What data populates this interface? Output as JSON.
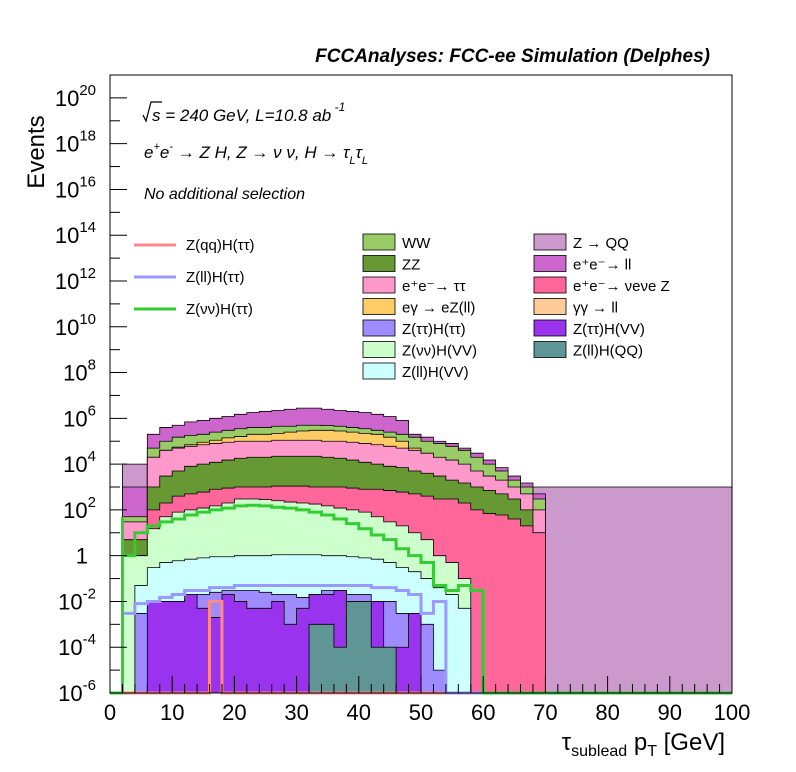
{
  "header": "FCCAnalyses: FCC-ee Simulation (Delphes)",
  "annotations": {
    "energy": "√s = 240 GeV, L=10.8 ab⁻¹",
    "process": "e⁺e⁻ → Z H, Z → νν, H → τ_L τ_L",
    "selection": "No additional selection"
  },
  "chart_data": {
    "type": "histogram",
    "stacked": true,
    "title": "FCCAnalyses: FCC-ee Simulation (Delphes)",
    "xlabel": "τsublead pT [GeV]",
    "ylabel": "Events",
    "xlim": [
      0,
      100
    ],
    "ylim": [
      1e-06,
      1e+21
    ],
    "yscale": "log",
    "grid": false,
    "legend_placement": "top",
    "x_ticks": [
      "0",
      "10",
      "20",
      "30",
      "40",
      "50",
      "60",
      "70",
      "80",
      "90",
      "100"
    ],
    "y_ticks": [
      {
        "b": "10",
        "e": "20",
        "v": 1e+20
      },
      {
        "b": "10",
        "e": "18",
        "v": 1e+18
      },
      {
        "b": "10",
        "e": "16",
        "v": 1e+16
      },
      {
        "b": "10",
        "e": "14",
        "v": 100000000000000.0
      },
      {
        "b": "10",
        "e": "12",
        "v": 1000000000000.0
      },
      {
        "b": "10",
        "e": "10",
        "v": 10000000000.0
      },
      {
        "b": "10",
        "e": "8",
        "v": 100000000.0
      },
      {
        "b": "10",
        "e": "6",
        "v": 1000000.0
      },
      {
        "b": "10",
        "e": "4",
        "v": 10000.0
      },
      {
        "b": "10",
        "e": "2",
        "v": 100.0
      },
      {
        "b": "1",
        "e": "",
        "v": 1
      },
      {
        "b": "10",
        "e": "-2",
        "v": 0.01
      },
      {
        "b": "10",
        "e": "-4",
        "v": 0.0001
      },
      {
        "b": "10",
        "e": "-6",
        "v": 1e-06
      }
    ],
    "stack_boundaries": [
      {
        "name": "Z(ll)H(QQ) top",
        "color": "#5f9595",
        "x": [
          0,
          30,
          32,
          36,
          38,
          40,
          42,
          44,
          46,
          48,
          100
        ],
        "y": [
          1e-06,
          1e-06,
          0.001,
          0.0001,
          0.01,
          0.01,
          0.0001,
          0.0001,
          1e-06,
          1e-06,
          1e-06
        ]
      },
      {
        "name": "Z(ττ)H(VV) top",
        "color": "#9933ee",
        "x": [
          0,
          4,
          6,
          8,
          10,
          12,
          14,
          16,
          18,
          20,
          22,
          24,
          26,
          28,
          30,
          32,
          34,
          36,
          38,
          40,
          42,
          44,
          46,
          48,
          50,
          100
        ],
        "y": [
          1e-06,
          1e-06,
          0.01,
          0.01,
          0.01,
          0.02,
          0.005,
          0.002,
          0.02,
          0.01,
          0.005,
          0.005,
          0.01,
          0.001,
          0.005,
          0.02,
          0.02,
          0.03,
          0.003,
          0.01,
          0.01,
          0.0001,
          0.0001,
          0.003,
          1e-06,
          1e-06
        ]
      },
      {
        "name": "Z(ττ)H(ττ) top",
        "color": "#9d8bff",
        "x": [
          0,
          2,
          4,
          6,
          8,
          10,
          12,
          14,
          16,
          18,
          20,
          22,
          24,
          26,
          28,
          30,
          32,
          34,
          36,
          38,
          40,
          42,
          44,
          46,
          48,
          50,
          52,
          54,
          100
        ],
        "y": [
          1e-06,
          1e-06,
          0.003,
          0.005,
          0.008,
          0.01,
          0.012,
          0.02,
          0.025,
          0.03,
          0.03,
          0.03,
          0.025,
          0.02,
          0.02,
          0.015,
          0.02,
          0.03,
          0.03,
          0.02,
          0.02,
          0.01,
          0.01,
          0.003,
          0.002,
          0.001,
          1e-05,
          1e-06,
          1e-06
        ]
      },
      {
        "name": "Z(ll)H(VV) top",
        "color": "#ccffff",
        "x": [
          0,
          2,
          4,
          6,
          8,
          10,
          12,
          14,
          16,
          18,
          20,
          22,
          24,
          26,
          28,
          30,
          32,
          34,
          36,
          38,
          40,
          42,
          44,
          46,
          48,
          50,
          52,
          54,
          56,
          58,
          100
        ],
        "y": [
          1e-06,
          1e-06,
          0.05,
          0.3,
          0.5,
          0.6,
          0.7,
          0.8,
          0.9,
          0.9,
          1.0,
          1.0,
          1.0,
          1.1,
          1.1,
          1.1,
          1.1,
          1.0,
          1.0,
          0.9,
          0.8,
          0.7,
          0.5,
          0.3,
          0.2,
          0.1,
          0.04,
          0.02,
          0.005,
          1e-06,
          1e-06
        ]
      },
      {
        "name": "Z(νν)H(VV) top",
        "color": "#ccffcc",
        "x": [
          0,
          2,
          4,
          6,
          8,
          10,
          12,
          14,
          16,
          18,
          20,
          22,
          24,
          26,
          28,
          30,
          32,
          34,
          36,
          38,
          40,
          42,
          44,
          46,
          48,
          50,
          52,
          54,
          56,
          58,
          100
        ],
        "y": [
          1e-06,
          1,
          1,
          15,
          50,
          80,
          100,
          120,
          150,
          200,
          300,
          300,
          280,
          250,
          220,
          200,
          180,
          150,
          120,
          100,
          80,
          50,
          30,
          20,
          10,
          5,
          1,
          0.5,
          0.1,
          1e-06,
          1e-06
        ]
      },
      {
        "name": "e⁺e⁻→νeνeZ top",
        "color": "#ff6699",
        "x": [
          0,
          2,
          4,
          6,
          8,
          10,
          12,
          14,
          16,
          18,
          20,
          22,
          24,
          26,
          28,
          30,
          32,
          34,
          36,
          38,
          40,
          42,
          44,
          46,
          48,
          50,
          52,
          54,
          56,
          58,
          60,
          62,
          64,
          66,
          68,
          70,
          100
        ],
        "y": [
          1e-06,
          1,
          1,
          100,
          200,
          400,
          500,
          600,
          800,
          900,
          1000,
          1000,
          1000,
          1100,
          1100,
          1100,
          1000,
          1000,
          1000,
          900,
          800,
          800,
          700,
          600,
          500,
          400,
          300,
          300,
          200,
          100,
          70,
          60,
          40,
          20,
          10,
          1e-06,
          1e-06
        ]
      },
      {
        "name": "ZZ top",
        "color": "#669933",
        "x": [
          0,
          2,
          4,
          6,
          8,
          10,
          12,
          14,
          16,
          18,
          20,
          22,
          24,
          26,
          28,
          30,
          32,
          34,
          36,
          38,
          40,
          42,
          44,
          46,
          48,
          50,
          52,
          54,
          56,
          58,
          60,
          62,
          64,
          66,
          68,
          70,
          100
        ],
        "y": [
          1e-06,
          5,
          5,
          1000,
          3000,
          5000,
          8000,
          10000,
          12000,
          15000,
          18000,
          20000,
          20000,
          22000,
          22000,
          22000,
          22000,
          20000,
          18000,
          15000,
          12000,
          10000,
          8000,
          7000,
          5000,
          4000,
          3000,
          2000,
          1500,
          1000,
          700,
          500,
          300,
          100,
          10,
          1e-06,
          1e-06
        ]
      },
      {
        "name": "e⁺e⁻→ττ top",
        "color": "#ff99cc",
        "x": [
          0,
          2,
          4,
          6,
          8,
          10,
          12,
          14,
          16,
          18,
          20,
          22,
          24,
          26,
          28,
          30,
          32,
          34,
          36,
          38,
          40,
          42,
          44,
          46,
          48,
          50,
          52,
          54,
          56,
          58,
          60,
          62,
          64,
          66,
          68,
          70,
          100
        ],
        "y": [
          1e-06,
          30,
          30,
          20000,
          40000,
          50000,
          60000,
          70000,
          80000,
          90000,
          100000,
          100000,
          100000,
          110000,
          110000,
          110000,
          110000,
          100000,
          100000,
          90000,
          80000,
          70000,
          60000,
          50000,
          40000,
          30000,
          20000,
          15000,
          10000,
          5000,
          3000,
          2000,
          1000,
          500,
          100,
          1e-06,
          1e-06
        ]
      },
      {
        "name": "eγ→eZ(ll) top",
        "color": "#ffcc66",
        "x": [
          0,
          2,
          4,
          6,
          8,
          10,
          12,
          14,
          16,
          18,
          20,
          22,
          24,
          26,
          28,
          30,
          32,
          34,
          36,
          38,
          40,
          42,
          44,
          46,
          48,
          50,
          100
        ],
        "y": [
          1e-06,
          30,
          30,
          20000,
          40000,
          55000,
          70000,
          90000,
          110000,
          140000,
          160000,
          200000,
          200000,
          220000,
          250000,
          280000,
          300000,
          300000,
          280000,
          250000,
          220000,
          200000,
          150000,
          100000,
          50000,
          1e-06,
          1e-06
        ]
      },
      {
        "name": "ZZ/WW upper top",
        "color": "#99cc66",
        "x": [
          0,
          2,
          4,
          6,
          8,
          10,
          12,
          14,
          16,
          18,
          20,
          22,
          24,
          26,
          28,
          30,
          32,
          34,
          36,
          38,
          40,
          42,
          44,
          46,
          48,
          50,
          52,
          54,
          56,
          58,
          60,
          62,
          64,
          66,
          68,
          70,
          100
        ],
        "y": [
          1e-06,
          50,
          50,
          50000,
          100000,
          150000,
          180000,
          200000,
          250000,
          300000,
          350000,
          400000,
          400000,
          450000,
          450000,
          500000,
          500000,
          480000,
          450000,
          400000,
          350000,
          300000,
          250000,
          200000,
          150000,
          100000,
          80000,
          60000,
          40000,
          20000,
          10000,
          5000,
          2000,
          1000,
          300,
          1e-06,
          1e-06
        ]
      },
      {
        "name": "e⁺e⁻→ll top",
        "color": "#cc66cc",
        "x": [
          0,
          2,
          4,
          6,
          8,
          10,
          12,
          14,
          16,
          18,
          20,
          22,
          24,
          26,
          28,
          30,
          32,
          34,
          36,
          38,
          40,
          42,
          44,
          46,
          48,
          50,
          52,
          54,
          56,
          58,
          60,
          62,
          64,
          66,
          68,
          70,
          100
        ],
        "y": [
          1e-06,
          1000,
          1000,
          200000,
          400000,
          500000,
          700000,
          800000,
          1000000,
          1200000,
          1500000,
          1800000,
          2000000,
          2200000,
          2500000,
          2800000,
          2800000,
          2500000,
          2200000,
          2000000,
          1800000,
          1500000,
          1200000,
          800000,
          200000,
          150000,
          100000,
          80000,
          50000,
          30000,
          15000,
          7000,
          3000,
          1500,
          500,
          1e-06,
          1e-06
        ]
      },
      {
        "name": "Z→QQ top",
        "color": "#cc99cc",
        "x": [
          0,
          2,
          4,
          6,
          100
        ],
        "y": [
          1e-06,
          10000,
          10000,
          1000,
          1000
        ]
      }
    ],
    "lines": [
      {
        "name": "Z(qq)H(ττ)",
        "color": "#ff8888",
        "x": [
          0,
          16,
          16,
          18,
          18,
          100
        ],
        "y": [
          1e-06,
          1e-06,
          0.01,
          0.01,
          1e-06,
          1e-06
        ]
      },
      {
        "name": "Z(ll)H(ττ)",
        "color": "#9999ff",
        "x": [
          0,
          2,
          2,
          4,
          4,
          6,
          8,
          10,
          12,
          14,
          16,
          18,
          20,
          22,
          24,
          26,
          28,
          30,
          32,
          34,
          36,
          38,
          40,
          42,
          44,
          46,
          48,
          50,
          50,
          52,
          52,
          54,
          54,
          100
        ],
        "y": [
          1e-06,
          1e-06,
          0.003,
          0.003,
          0.008,
          0.01,
          0.015,
          0.02,
          0.03,
          0.03,
          0.04,
          0.04,
          0.05,
          0.05,
          0.05,
          0.05,
          0.05,
          0.05,
          0.05,
          0.05,
          0.05,
          0.05,
          0.05,
          0.04,
          0.04,
          0.03,
          0.02,
          0.02,
          0.003,
          0.003,
          0.01,
          0.01,
          1e-06,
          1e-06
        ]
      },
      {
        "name": "Z(νν)H(ττ)",
        "color": "#33cc33",
        "x": [
          0,
          2,
          2,
          4,
          4,
          6,
          8,
          10,
          12,
          14,
          16,
          18,
          20,
          22,
          24,
          26,
          28,
          30,
          32,
          34,
          36,
          38,
          40,
          42,
          44,
          46,
          48,
          50,
          52,
          54,
          56,
          58,
          60,
          100
        ],
        "y": [
          1e-06,
          50,
          1,
          1,
          10,
          20,
          30,
          40,
          60,
          80,
          100,
          120,
          150,
          160,
          150,
          130,
          120,
          100,
          80,
          60,
          40,
          25,
          15,
          8,
          5,
          2,
          1,
          0.5,
          0.05,
          0.03,
          0.05,
          0.03,
          1e-06,
          1e-06
        ]
      }
    ]
  },
  "legend": {
    "lines": [
      {
        "label": "Z(qq)H(ττ)",
        "color": "#ff8888"
      },
      {
        "label": "Z(ll)H(ττ)",
        "color": "#9999ff"
      },
      {
        "label": "Z(νν)H(ττ)",
        "color": "#33cc33"
      }
    ],
    "col1": [
      {
        "label": "WW",
        "color": "#99cc66"
      },
      {
        "label": "ZZ",
        "color": "#669933"
      },
      {
        "label": "e⁺e⁻→ ττ",
        "color": "#ff99cc"
      },
      {
        "label": "eγ → eZ(ll)",
        "color": "#ffcc66"
      },
      {
        "label": "Z(ττ)H(ττ)",
        "color": "#9d8bff"
      },
      {
        "label": "Z(νν)H(VV)",
        "color": "#ccffcc"
      },
      {
        "label": "Z(ll)H(VV)",
        "color": "#ccffff"
      }
    ],
    "col2": [
      {
        "label": "Z → QQ",
        "color": "#cc99cc"
      },
      {
        "label": "e⁺e⁻→ ll",
        "color": "#cc66cc"
      },
      {
        "label": "e⁺e⁻→ νeνe Z",
        "color": "#ff6699"
      },
      {
        "label": "γγ → ll",
        "color": "#ffcc99"
      },
      {
        "label": "Z(ττ)H(VV)",
        "color": "#9933ee"
      },
      {
        "label": "Z(ll)H(QQ)",
        "color": "#5f9595"
      }
    ]
  }
}
